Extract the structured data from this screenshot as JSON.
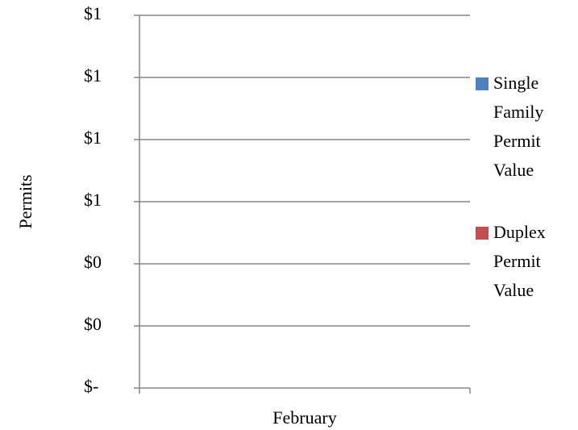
{
  "chart_data": {
    "type": "bar",
    "y_label": "Permits",
    "categories": [
      "February"
    ],
    "series": [
      {
        "name": "Single Family Permit Value",
        "color": "#4f81bd",
        "values": [
          0
        ]
      },
      {
        "name": "Duplex Permit Value",
        "color": "#c0504d",
        "values": [
          0
        ]
      }
    ],
    "ylim": [
      0,
      1.2
    ],
    "yticks": [
      {
        "value": 0,
        "label": "$-"
      },
      {
        "value": 0.2,
        "label": "$0"
      },
      {
        "value": 0.4,
        "label": "$0"
      },
      {
        "value": 0.6,
        "label": "$1"
      },
      {
        "value": 0.8,
        "label": "$1"
      },
      {
        "value": 1.0,
        "label": "$1"
      },
      {
        "value": 1.2,
        "label": "$1"
      }
    ],
    "grid": true
  }
}
